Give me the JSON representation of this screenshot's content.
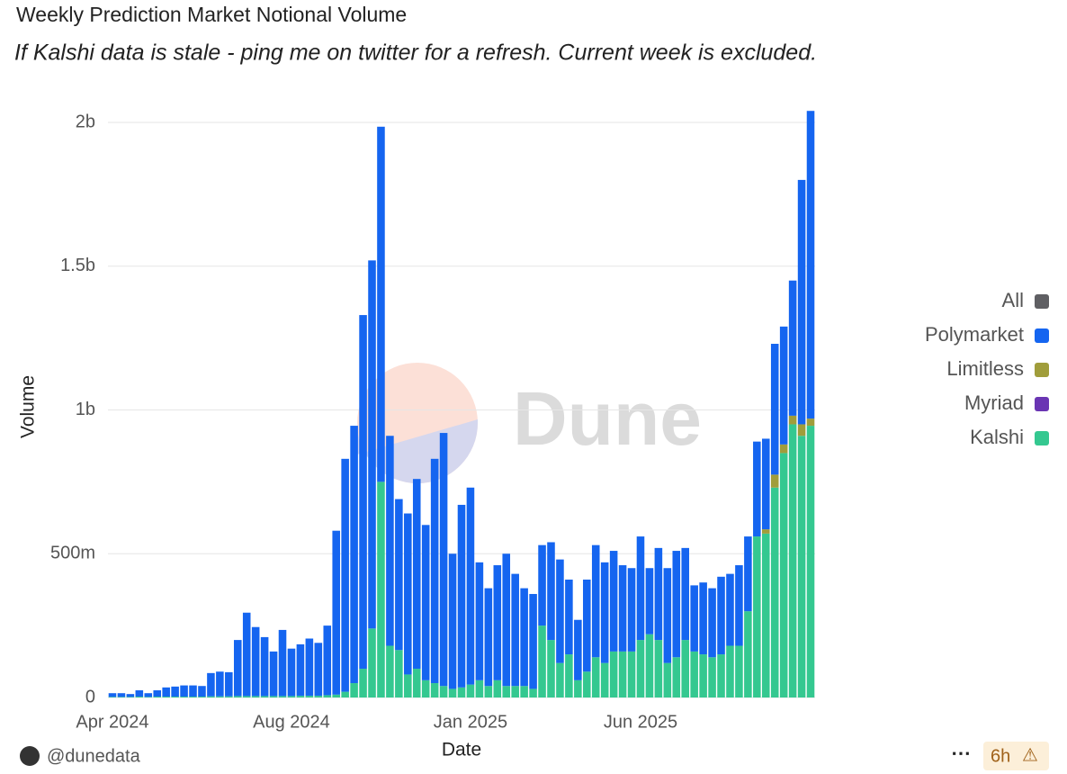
{
  "chart_data": {
    "type": "stacked_bar",
    "title": "Weekly Prediction Market Notional Volume",
    "subtitle": "If Kalshi data is stale - ping me on twitter for a refresh. Current week is excluded.",
    "x_label": "Date",
    "y_label": "Volume",
    "watermark": "Dune",
    "source": "@dunedata",
    "age": "6h",
    "categories": [
      "Apr 2024",
      null,
      null,
      null,
      null,
      null,
      null,
      null,
      null,
      null,
      null,
      null,
      null,
      null,
      null,
      null,
      null,
      null,
      null,
      null,
      "Aug 2024",
      null,
      null,
      null,
      null,
      null,
      null,
      null,
      null,
      null,
      null,
      null,
      null,
      null,
      null,
      null,
      null,
      null,
      null,
      null,
      "Jan 2025",
      null,
      null,
      null,
      null,
      null,
      null,
      null,
      null,
      null,
      null,
      null,
      null,
      null,
      null,
      null,
      null,
      null,
      null,
      "Jun 2025",
      null,
      null,
      null,
      null,
      null,
      null,
      null,
      null,
      null,
      null,
      null,
      null,
      null,
      null,
      null,
      null,
      null,
      null,
      null
    ],
    "series": [
      {
        "name": "All",
        "color": "#5f5f63",
        "values": [
          null,
          null,
          null,
          null,
          null,
          null,
          null,
          null,
          null,
          null,
          null,
          null,
          null,
          null,
          null,
          null,
          null,
          null,
          null,
          null,
          null,
          null,
          null,
          null,
          null,
          null,
          null,
          null,
          null,
          null,
          null,
          null,
          null,
          null,
          null,
          null,
          null,
          null,
          null,
          null,
          null,
          null,
          null,
          null,
          null,
          null,
          null,
          null,
          null,
          null,
          null,
          null,
          null,
          null,
          null,
          null,
          null,
          null,
          null,
          null,
          null,
          null,
          null,
          null,
          null,
          null,
          null,
          null,
          null,
          null,
          null,
          null,
          null,
          null,
          null,
          null,
          null,
          null,
          null
        ]
      },
      {
        "name": "Polymarket",
        "color": "#1565f0",
        "values": [
          13,
          13,
          10,
          22,
          13,
          22,
          32,
          35,
          39,
          39,
          37,
          81,
          86,
          84,
          195,
          290,
          240,
          205,
          155,
          230,
          165,
          179,
          199,
          184,
          242,
          570,
          810,
          895,
          1230,
          1280,
          1235,
          730,
          525,
          560,
          660,
          540,
          780,
          880,
          470,
          635,
          685,
          410,
          340,
          400,
          460,
          390,
          340,
          330,
          280,
          340,
          360,
          260,
          210,
          320,
          390,
          350,
          350,
          300,
          290,
          360,
          230,
          320,
          330,
          370,
          320,
          230,
          250,
          240,
          270,
          250,
          280,
          260,
          330,
          315,
          455,
          410,
          470,
          850,
          1070
        ]
      },
      {
        "name": "Limitless",
        "color": "#a09d3b",
        "values": [
          0,
          0,
          0,
          0,
          0,
          0,
          0,
          0,
          0,
          0,
          0,
          0,
          0,
          0,
          0,
          0,
          0,
          0,
          0,
          0,
          0,
          0,
          0,
          0,
          0,
          0,
          0,
          0,
          0,
          0,
          0,
          0,
          0,
          0,
          0,
          0,
          0,
          0,
          0,
          0,
          0,
          0,
          0,
          0,
          0,
          0,
          0,
          0,
          0,
          0,
          0,
          0,
          0,
          0,
          0,
          0,
          0,
          0,
          0,
          0,
          0,
          0,
          0,
          0,
          0,
          0,
          0,
          0,
          0,
          0,
          0,
          0,
          0,
          15,
          45,
          30,
          30,
          40,
          25
        ]
      },
      {
        "name": "Myriad",
        "color": "#6a35b3",
        "values": [
          0,
          0,
          0,
          0,
          0,
          0,
          0,
          0,
          0,
          0,
          0,
          0,
          0,
          0,
          0,
          0,
          0,
          0,
          0,
          0,
          0,
          0,
          0,
          0,
          0,
          0,
          0,
          0,
          0,
          0,
          0,
          0,
          0,
          0,
          0,
          0,
          0,
          0,
          0,
          0,
          0,
          0,
          0,
          0,
          0,
          0,
          0,
          0,
          0,
          0,
          0,
          0,
          0,
          0,
          0,
          0,
          0,
          0,
          0,
          0,
          0,
          0,
          0,
          0,
          0,
          0,
          0,
          0,
          0,
          0,
          0,
          0,
          0,
          0,
          0,
          0,
          0,
          0,
          0
        ]
      },
      {
        "name": "Kalshi",
        "color": "#34c890",
        "values": [
          2,
          2,
          2,
          3,
          2,
          3,
          3,
          3,
          3,
          3,
          3,
          4,
          4,
          4,
          5,
          5,
          5,
          5,
          5,
          5,
          5,
          6,
          6,
          6,
          8,
          10,
          20,
          50,
          100,
          240,
          750,
          180,
          165,
          80,
          100,
          60,
          50,
          40,
          30,
          35,
          45,
          60,
          40,
          60,
          40,
          40,
          40,
          30,
          250,
          200,
          120,
          150,
          60,
          90,
          140,
          120,
          160,
          160,
          160,
          200,
          220,
          200,
          120,
          140,
          200,
          160,
          150,
          140,
          150,
          180,
          180,
          300,
          560,
          570,
          730,
          850,
          950,
          910,
          945
        ]
      }
    ],
    "ylim": [
      0,
      2050
    ],
    "yticks": [
      0,
      {
        "value": 500,
        "label": "500m"
      },
      {
        "value": 1000,
        "label": "1b"
      },
      {
        "value": 1500,
        "label": "1.5b"
      },
      {
        "value": 2000,
        "label": "2b"
      }
    ],
    "grid": true,
    "legend": "right"
  }
}
